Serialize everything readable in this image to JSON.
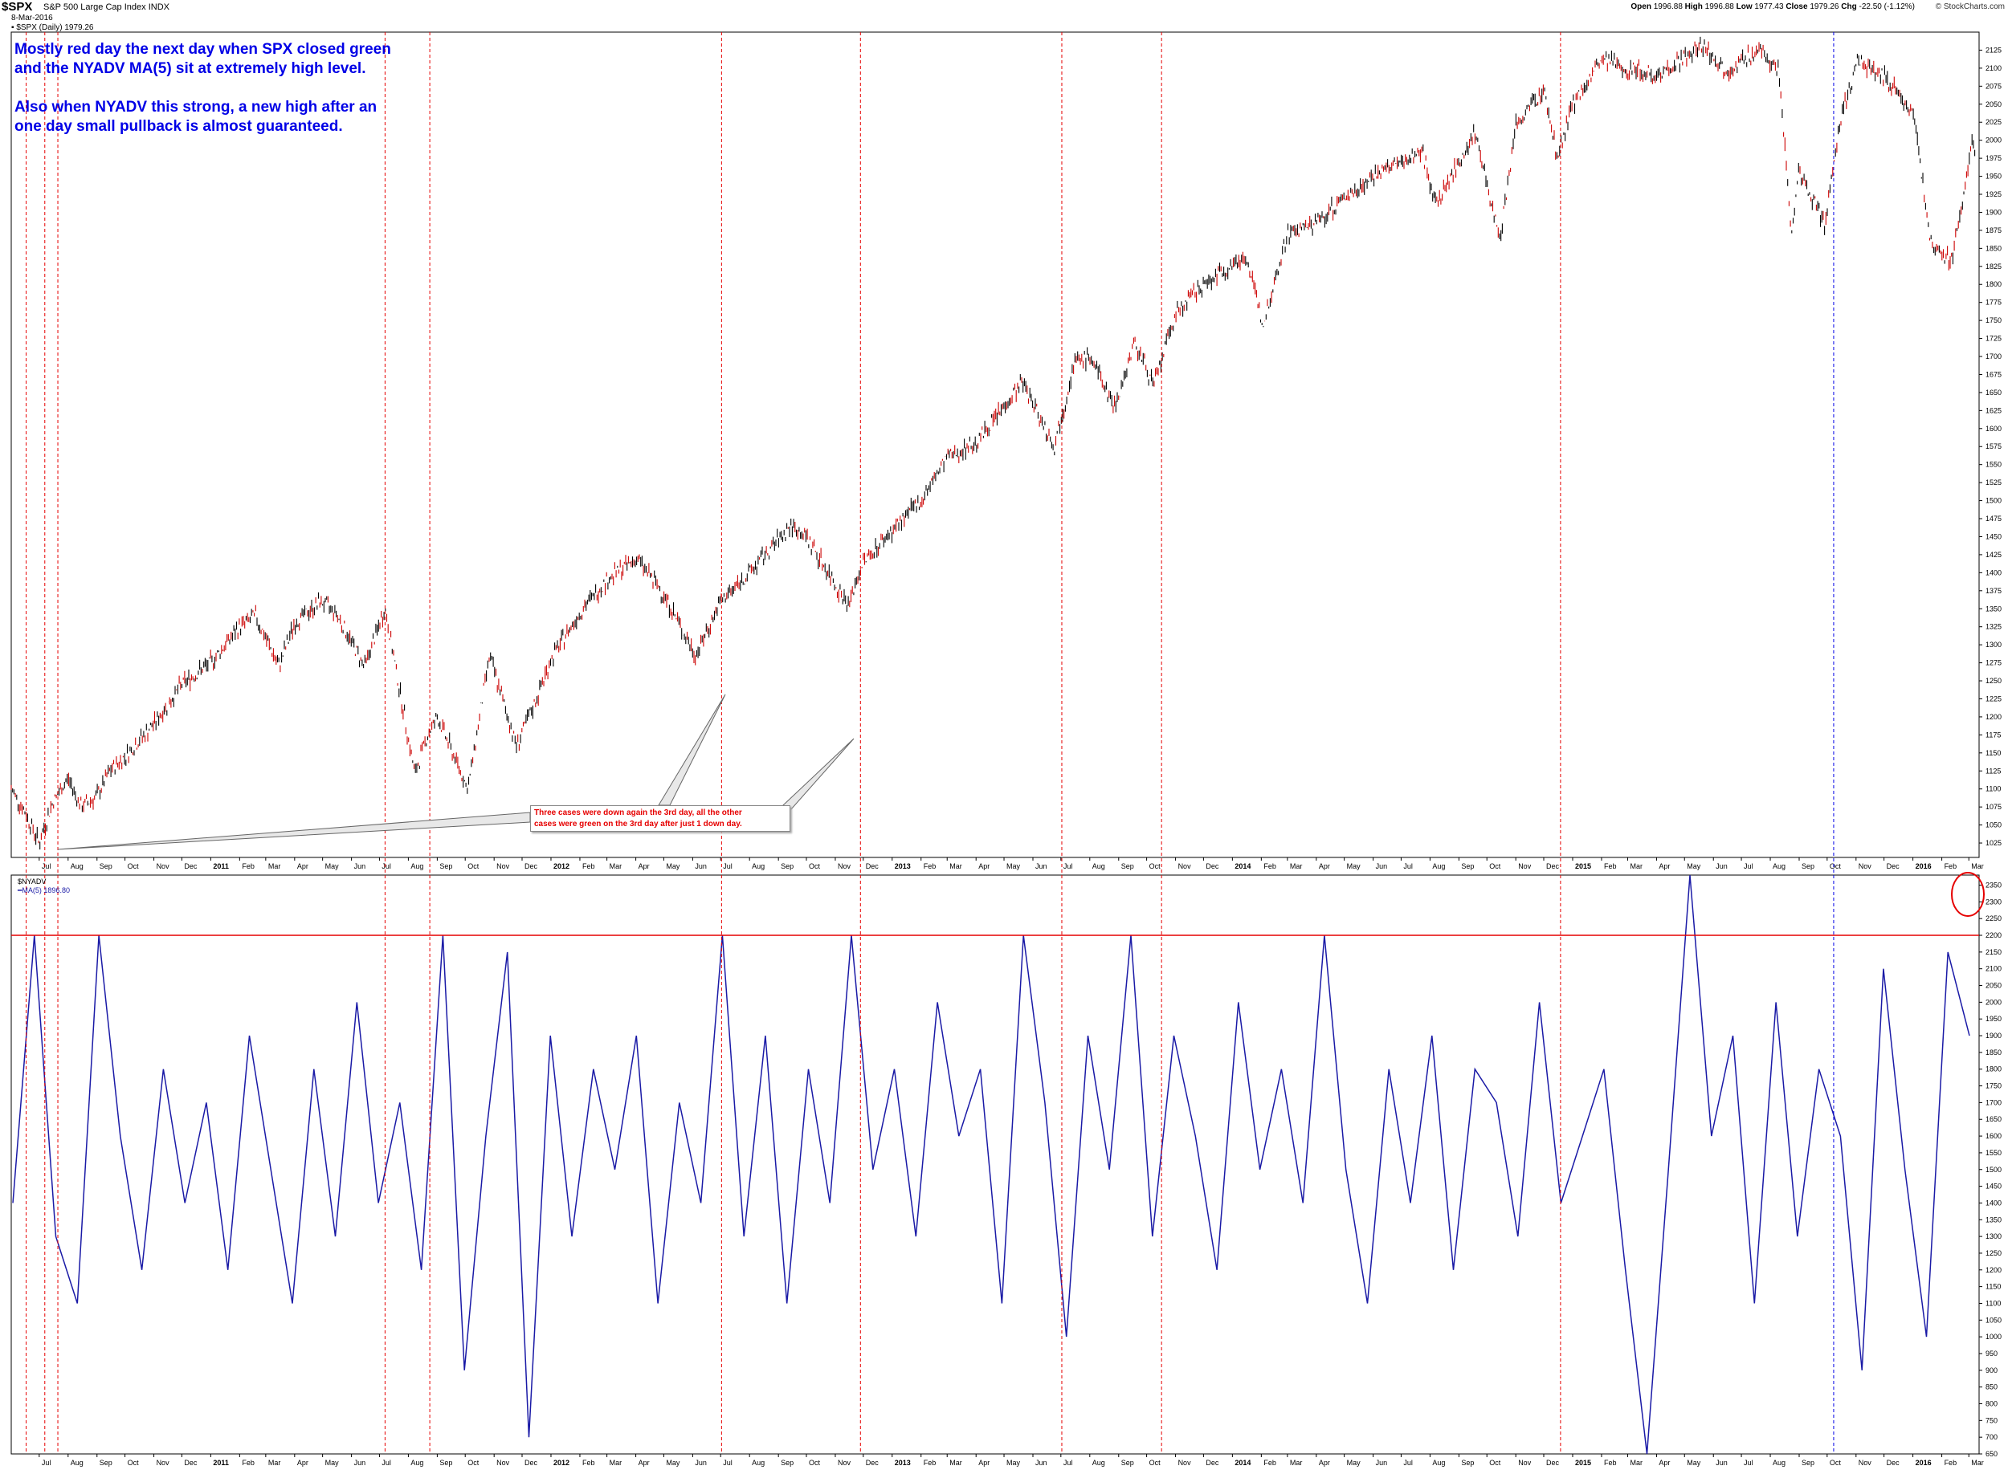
{
  "header": {
    "ticker": "$SPX",
    "index_name": "S&P 500 Large Cap Index",
    "exchange": "INDX",
    "date": "8-Mar-2016",
    "series_label": "$SPX (Daily) 1979.26",
    "open_label": "Open",
    "open_value": "1996.88",
    "high_label": "High",
    "high_value": "1996.88",
    "low_label": "Low",
    "low_value": "1977.43",
    "close_label": "Close",
    "close_value": "1979.26",
    "chg_label": "Chg",
    "chg_value": "-22.50 (-1.12%)",
    "brand": "© StockCharts.com"
  },
  "notes": {
    "line1": "Mostly red day the next day when SPX closed green",
    "line2": "and the NYADV MA(5) sit at extremely high level.",
    "line3": "Also when NYADV this strong, a new high after an",
    "line4": "one day small pullback is almost guaranteed."
  },
  "annotation": {
    "line1": "Three cases were down again the 3rd day, all the other",
    "line2": "cases were green on the 3rd day after just 1 down day."
  },
  "lower_panel": {
    "title": "$NYADV",
    "legend": "MA(5) 1896.80"
  },
  "colors": {
    "price_up": "#000000",
    "price_down": "#cc0000",
    "nyadv_line": "#1a1aa6",
    "marker_red": "#e60000",
    "marker_blue": "#0000e6",
    "threshold_line": "#e60000",
    "note_text": "#0000e6",
    "grid": "#000000"
  },
  "chart_data": [
    {
      "type": "line",
      "title": "$SPX (Daily)",
      "note": "S&P 500 daily price, June 2010 – March 2016 (approximate path read from chart)",
      "x_ticks": [
        "Jul",
        "Aug",
        "Sep",
        "Oct",
        "Nov",
        "Dec",
        "2011",
        "Feb",
        "Mar",
        "Apr",
        "May",
        "Jun",
        "Jul",
        "Aug",
        "Sep",
        "Oct",
        "Nov",
        "Dec",
        "2012",
        "Feb",
        "Mar",
        "Apr",
        "May",
        "Jun",
        "Jul",
        "Aug",
        "Sep",
        "Oct",
        "Nov",
        "Dec",
        "2013",
        "Feb",
        "Mar",
        "Apr",
        "May",
        "Jun",
        "Jul",
        "Aug",
        "Sep",
        "Oct",
        "Nov",
        "Dec",
        "2014",
        "Feb",
        "Mar",
        "Apr",
        "May",
        "Jun",
        "Jul",
        "Aug",
        "Sep",
        "Oct",
        "Nov",
        "Dec",
        "2015",
        "Feb",
        "Mar",
        "Apr",
        "May",
        "Jun",
        "Jul",
        "Aug",
        "Sep",
        "Oct",
        "Nov",
        "Dec",
        "2016",
        "Feb",
        "Mar"
      ],
      "x": [
        "2010-06-01",
        "2010-06-15",
        "2010-07-01",
        "2010-07-15",
        "2010-08-01",
        "2010-08-15",
        "2010-09-01",
        "2010-09-15",
        "2010-10-01",
        "2010-11-01",
        "2010-12-01",
        "2011-01-01",
        "2011-02-01",
        "2011-02-18",
        "2011-03-15",
        "2011-04-01",
        "2011-04-29",
        "2011-05-15",
        "2011-06-15",
        "2011-07-07",
        "2011-08-08",
        "2011-08-20",
        "2011-09-01",
        "2011-10-04",
        "2011-10-27",
        "2011-11-25",
        "2011-12-15",
        "2012-01-01",
        "2012-02-01",
        "2012-03-01",
        "2012-04-02",
        "2012-05-01",
        "2012-06-04",
        "2012-07-01",
        "2012-08-01",
        "2012-09-14",
        "2012-10-01",
        "2012-11-15",
        "2012-12-01",
        "2013-01-02",
        "2013-02-01",
        "2013-03-01",
        "2013-04-01",
        "2013-05-21",
        "2013-06-24",
        "2013-07-15",
        "2013-08-01",
        "2013-08-28",
        "2013-09-18",
        "2013-10-09",
        "2013-11-01",
        "2013-12-01",
        "2014-01-15",
        "2014-02-03",
        "2014-03-01",
        "2014-04-01",
        "2014-05-01",
        "2014-06-01",
        "2014-07-24",
        "2014-08-07",
        "2014-09-18",
        "2014-10-15",
        "2014-11-01",
        "2014-12-01",
        "2014-12-16",
        "2015-01-01",
        "2015-02-01",
        "2015-03-01",
        "2015-04-01",
        "2015-05-21",
        "2015-06-15",
        "2015-07-20",
        "2015-08-10",
        "2015-08-24",
        "2015-09-01",
        "2015-09-29",
        "2015-10-15",
        "2015-11-03",
        "2015-12-01",
        "2016-01-01",
        "2016-01-20",
        "2016-02-11",
        "2016-03-01",
        "2016-03-04",
        "2016-03-08"
      ],
      "y": [
        1100,
        1070,
        1025,
        1080,
        1115,
        1075,
        1090,
        1125,
        1145,
        1190,
        1245,
        1275,
        1325,
        1340,
        1270,
        1330,
        1360,
        1345,
        1270,
        1350,
        1120,
        1170,
        1200,
        1100,
        1285,
        1160,
        1220,
        1280,
        1345,
        1390,
        1420,
        1370,
        1285,
        1360,
        1400,
        1465,
        1450,
        1355,
        1415,
        1460,
        1500,
        1560,
        1580,
        1665,
        1575,
        1690,
        1700,
        1630,
        1720,
        1660,
        1760,
        1800,
        1840,
        1745,
        1870,
        1885,
        1920,
        1950,
        1985,
        1910,
        2010,
        1865,
        2020,
        2070,
        1975,
        2050,
        2110,
        2100,
        2090,
        2130,
        2095,
        2125,
        2100,
        1870,
        1960,
        1880,
        2030,
        2110,
        2090,
        2040,
        1860,
        1830,
        1960,
        2000,
        1979
      ]
    },
    {
      "type": "line",
      "title": "$NYADV",
      "series": [
        {
          "name": "MA(5)",
          "values": [
            1400,
            2200,
            1300,
            1100,
            2200,
            1600,
            1200,
            1800,
            1400,
            1700,
            1200,
            1900,
            1500,
            1100,
            1800,
            1300,
            2000,
            1400,
            1700,
            1200,
            2200,
            900,
            1600,
            2150,
            700,
            1900,
            1300,
            1800,
            1500,
            1900,
            1100,
            1700,
            1400,
            2200,
            1300,
            1900,
            1100,
            1800,
            1400,
            2200,
            1500,
            1800,
            1300,
            2000,
            1600,
            1800,
            1100,
            2200,
            1700,
            1000,
            1900,
            1500,
            2200,
            1300,
            1900,
            1600,
            1200,
            2000,
            1500,
            1800,
            1400,
            2200,
            1500,
            1100,
            1800,
            1400,
            1900,
            1200,
            1800,
            1700,
            1300,
            2000,
            1400,
            1600,
            1800,
            1200,
            650,
            1500,
            2380,
            1600,
            1900,
            1100,
            2000,
            1300,
            1800,
            1600,
            900,
            2100,
            1500,
            1000,
            2150,
            1900
          ]
        }
      ],
      "ylim": [
        650,
        2380
      ],
      "threshold": 2200,
      "last_value": "1896.80"
    }
  ]
}
